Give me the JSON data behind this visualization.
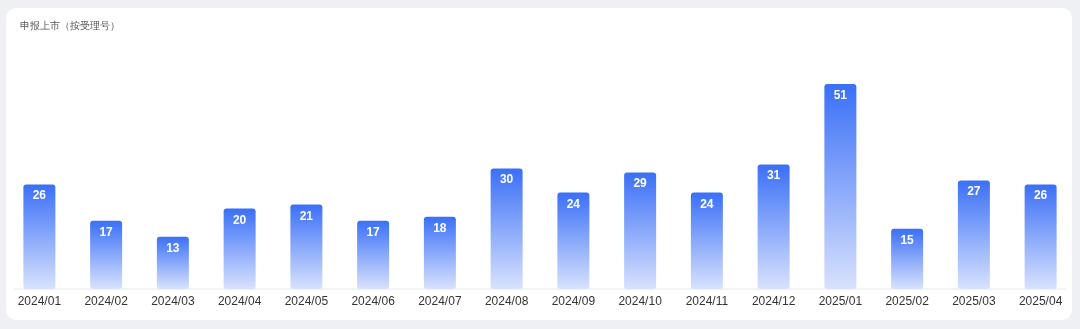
{
  "chart_data": {
    "type": "bar",
    "title": "申报上市（按受理号）",
    "categories": [
      "2024/01",
      "2024/02",
      "2024/03",
      "2024/04",
      "2024/05",
      "2024/06",
      "2024/07",
      "2024/08",
      "2024/09",
      "2024/10",
      "2024/11",
      "2024/12",
      "2025/01",
      "2025/02",
      "2025/03",
      "2025/04"
    ],
    "values": [
      26,
      17,
      13,
      20,
      21,
      17,
      18,
      30,
      24,
      29,
      24,
      31,
      51,
      15,
      27,
      26
    ],
    "color": "#3a6ff7",
    "data_labels": true
  }
}
